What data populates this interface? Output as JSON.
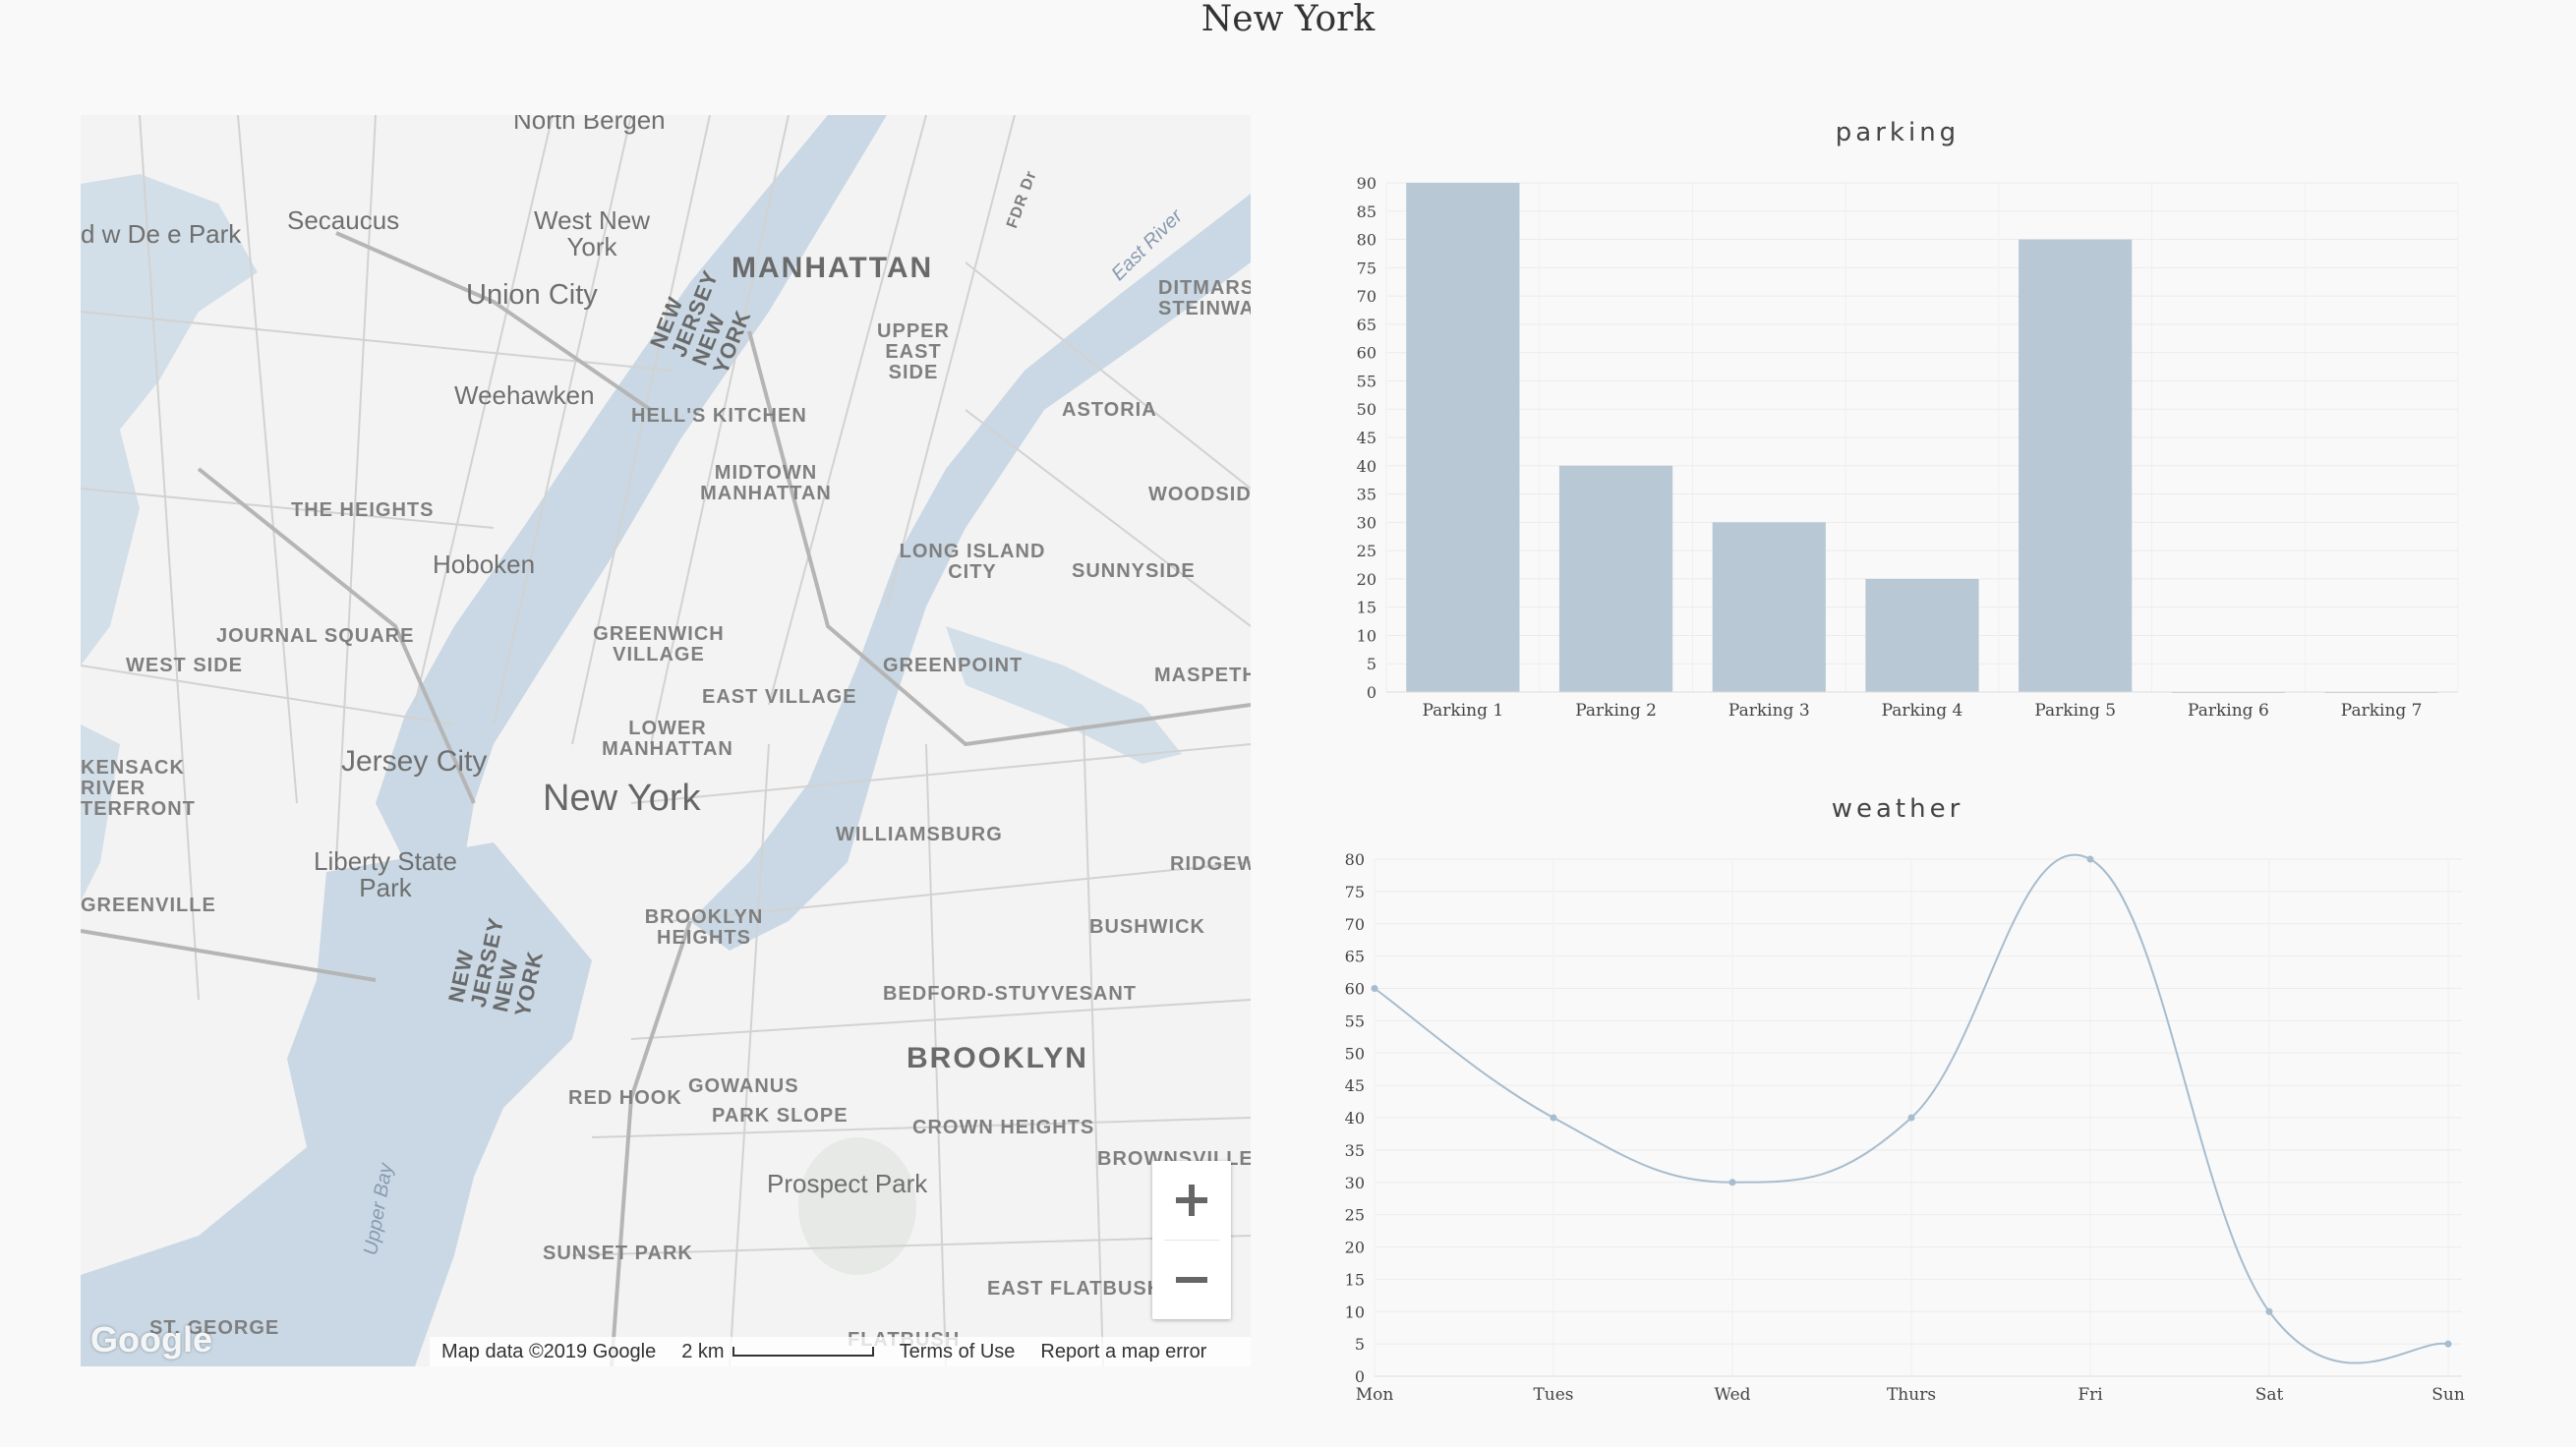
{
  "page": {
    "title": "New York"
  },
  "map": {
    "labels": {
      "north_bergen": "North Bergen",
      "secaucus": "Secaucus",
      "west_new_york": "West New York",
      "union_city": "Union City",
      "weehawken": "Weehawken",
      "hoboken": "Hoboken",
      "jersey_city": "Jersey City",
      "liberty_state_park": "Liberty State Park",
      "new_york": "New York",
      "manhattan": "MANHATTAN",
      "upper_east_side": "UPPER EAST SIDE",
      "hells_kitchen": "HELL'S KITCHEN",
      "midtown_manhattan": "MIDTOWN MANHATTAN",
      "greenwich_village": "GREENWICH VILLAGE",
      "east_village": "EAST VILLAGE",
      "lower_manhattan": "LOWER MANHATTAN",
      "the_heights": "THE HEIGHTS",
      "journal_square": "JOURNAL SQUARE",
      "west_side": "WEST SIDE",
      "hackensack_riverfront": "KENSACK RIVER TERFRONT",
      "greenville": "GREENVILLE",
      "astoria": "ASTORIA",
      "long_island_city": "LONG ISLAND CITY",
      "sunnyside": "SUNNYSIDE",
      "woodside": "WOODSIDE",
      "greenpoint": "GREENPOINT",
      "maspeth": "MASPETH",
      "williamsburg": "WILLIAMSBURG",
      "ridgewood": "RIDGEW",
      "bushwick": "BUSHWICK",
      "brooklyn_heights": "BROOKLYN HEIGHTS",
      "bedford_stuyvesant": "BEDFORD-STUYVESANT",
      "brooklyn": "BROOKLYN",
      "red_hook": "RED HOOK",
      "gowanus": "GOWANUS",
      "park_slope": "PARK SLOPE",
      "crown_heights": "CROWN HEIGHTS",
      "prospect_park": "Prospect Park",
      "brownsville": "BROWNSVILLE",
      "sunset_park": "SUNSET PARK",
      "east_flatbush": "EAST FLATBUSH",
      "st_george": "ST. GEORGE",
      "flatbush": "FLATBUSH",
      "ditmars_steinway": "DITMARS STEINWAY",
      "fdr_dr": "FDR Dr",
      "east_river": "East River",
      "upper_bay": "Upper Bay",
      "nj_ny_north": "NEW JERSEY NEW YORK",
      "nj_ny_south": "NEW JERSEY NEW YORK",
      "park_w_de": "d w De e Park"
    },
    "zoom_in_icon": "plus-icon",
    "zoom_out_icon": "minus-icon",
    "footer": {
      "attribution": "Map data ©2019 Google",
      "scale_label": "2 km",
      "terms": "Terms of Use",
      "report": "Report a map error"
    },
    "logo_text": "Google",
    "colors": {
      "water": "#c9d8e4",
      "land": "#f2f2f2",
      "roads": "#c4c4c4"
    }
  },
  "chart_data": [
    {
      "type": "bar",
      "title": "parking",
      "categories": [
        "Parking 1",
        "Parking 2",
        "Parking 3",
        "Parking 4",
        "Parking 5",
        "Parking 6",
        "Parking 7"
      ],
      "values": [
        90,
        40,
        30,
        20,
        80,
        0,
        0
      ],
      "ylim": [
        0,
        90
      ],
      "yticks": [
        0,
        5,
        10,
        15,
        20,
        25,
        30,
        35,
        40,
        45,
        50,
        55,
        60,
        65,
        70,
        75,
        80,
        85,
        90
      ],
      "grid": true,
      "color": "#b9c8d5"
    },
    {
      "type": "line",
      "title": "weather",
      "categories": [
        "Mon",
        "Tues",
        "Wed",
        "Thurs",
        "Fri",
        "Sat",
        "Sun"
      ],
      "values": [
        60,
        40,
        30,
        40,
        80,
        10,
        5
      ],
      "ylim": [
        0,
        80
      ],
      "yticks": [
        0,
        5,
        10,
        15,
        20,
        25,
        30,
        35,
        40,
        45,
        50,
        55,
        60,
        65,
        70,
        75,
        80
      ],
      "grid": true,
      "color": "#a7bccd"
    }
  ]
}
